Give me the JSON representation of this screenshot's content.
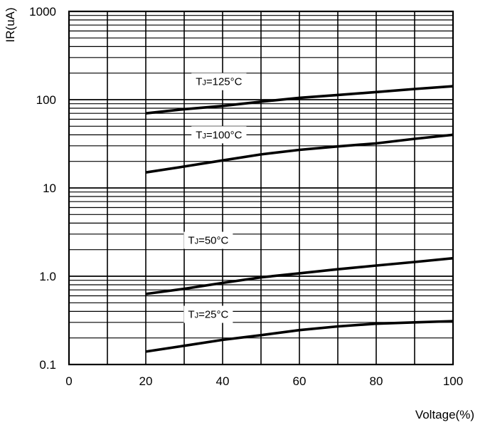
{
  "chart_data": {
    "type": "line",
    "xlabel": "Voltage(%)",
    "ylabel": "IR(uA)",
    "xlim": [
      0,
      100
    ],
    "ylim": [
      0.1,
      1000
    ],
    "y_scale": "log",
    "grid": true,
    "x_ticks": [
      "0",
      "20",
      "40",
      "60",
      "80",
      "100"
    ],
    "y_ticks": [
      "0.1",
      "1.0",
      "10",
      "100",
      "1000"
    ],
    "y_tick_values": [
      0.1,
      1,
      10,
      100,
      1000
    ],
    "series": [
      {
        "name": "TJ=125°C",
        "label_prefix": "T",
        "label_sub": "J",
        "label_suffix": "=125°C",
        "label_at": [
          33,
          160
        ],
        "x": [
          20,
          30,
          40,
          50,
          60,
          70,
          80,
          90,
          100
        ],
        "y": [
          70,
          78,
          85,
          95,
          105,
          113,
          122,
          132,
          142
        ]
      },
      {
        "name": "TJ=100°C",
        "label_prefix": "T",
        "label_sub": "J",
        "label_suffix": "=100°C",
        "label_at": [
          33,
          40
        ],
        "x": [
          20,
          30,
          40,
          50,
          60,
          70,
          80,
          90,
          100
        ],
        "y": [
          15,
          17.5,
          20.5,
          24,
          27,
          29.5,
          32,
          36,
          40
        ]
      },
      {
        "name": "TJ=50°C",
        "label_prefix": "T",
        "label_sub": "J",
        "label_suffix": "=50°C",
        "label_at": [
          31,
          2.55
        ],
        "x": [
          20,
          30,
          40,
          50,
          60,
          70,
          80,
          90,
          100
        ],
        "y": [
          0.63,
          0.72,
          0.84,
          0.97,
          1.08,
          1.2,
          1.32,
          1.45,
          1.6
        ]
      },
      {
        "name": "TJ=25°C",
        "label_prefix": "T",
        "label_sub": "J",
        "label_suffix": "=25°C",
        "label_at": [
          31,
          0.37
        ],
        "x": [
          20,
          30,
          40,
          50,
          60,
          70,
          80,
          90,
          100
        ],
        "y": [
          0.14,
          0.163,
          0.19,
          0.215,
          0.245,
          0.27,
          0.29,
          0.3,
          0.31
        ]
      }
    ]
  }
}
